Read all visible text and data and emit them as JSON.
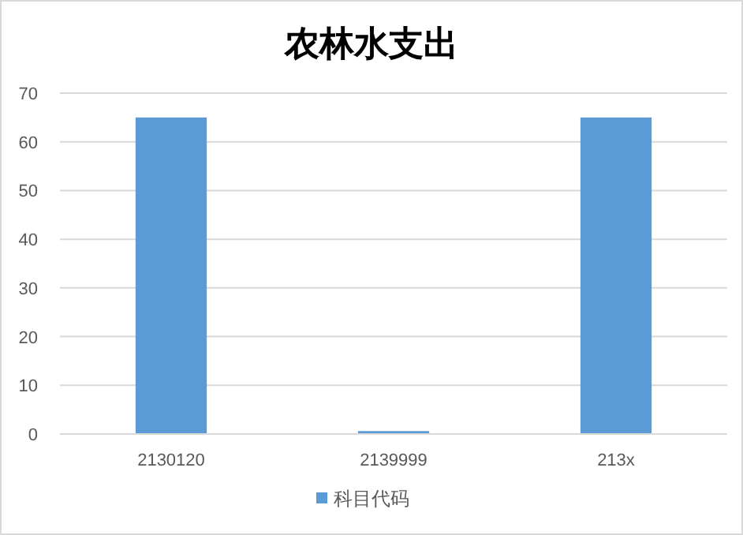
{
  "chart_data": {
    "type": "bar",
    "title": "农林水支出",
    "categories": [
      "2130120",
      "2139999",
      "213x"
    ],
    "series": [
      {
        "name": "科目代码",
        "color": "#5b9bd5",
        "values": [
          65,
          0.6,
          65
        ]
      }
    ],
    "ylim": [
      0,
      70
    ],
    "yticks": [
      0,
      10,
      20,
      30,
      40,
      50,
      60,
      70
    ],
    "grid": "y",
    "legend": "bottom"
  }
}
